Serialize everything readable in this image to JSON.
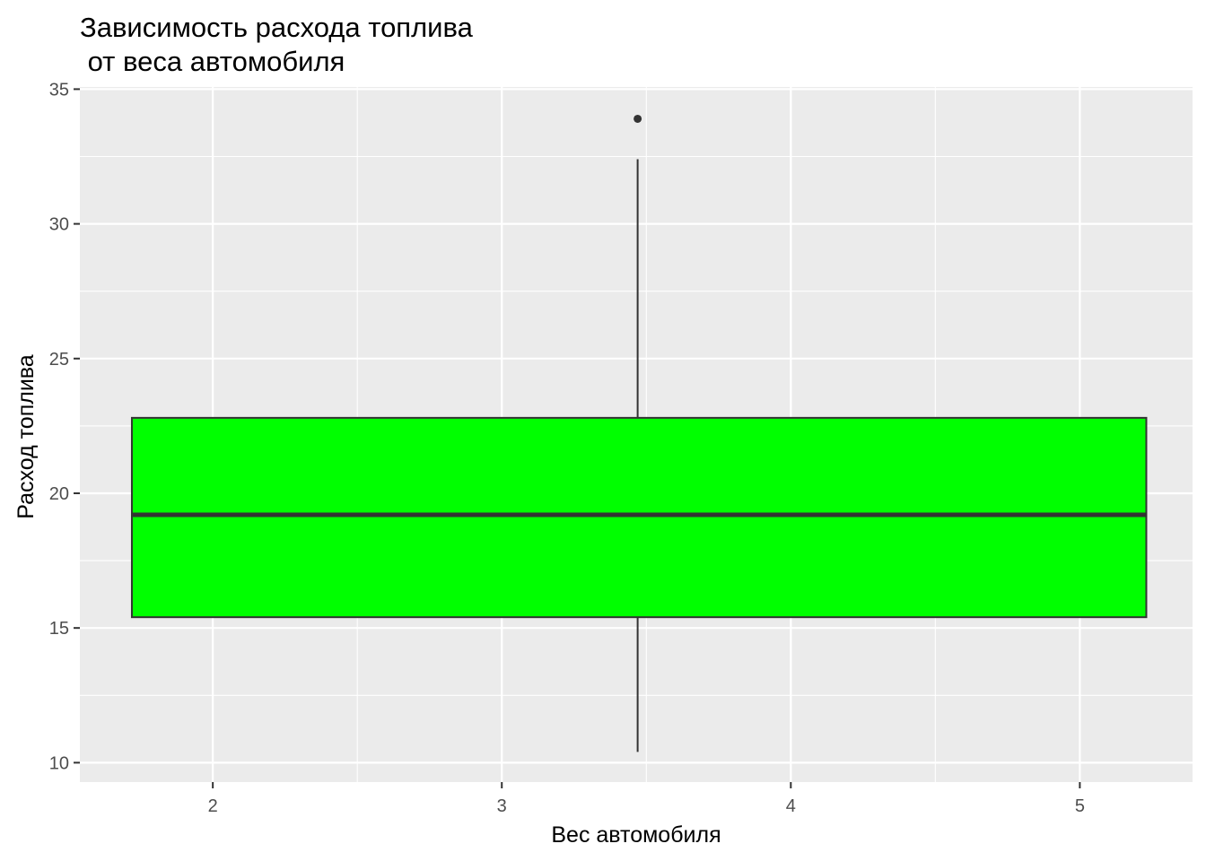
{
  "chart_data": {
    "type": "boxplot",
    "title_lines": [
      "Зависимость расхода топлива",
      " от веса автомобиля"
    ],
    "xlabel": "Вес автомобиля",
    "ylabel": "Расход топлива",
    "xlim": [
      1.54,
      5.39
    ],
    "ylim": [
      9.28,
      35.08
    ],
    "x_ticks": [
      2,
      3,
      4,
      5
    ],
    "y_ticks": [
      10,
      15,
      20,
      25,
      30,
      35
    ],
    "grid": true,
    "legend": "none",
    "box": {
      "x_min": 1.72,
      "x_max": 5.23,
      "whisker_x": 3.47,
      "q1": 15.4,
      "median": 19.2,
      "q3": 22.8,
      "whisker_low": 10.4,
      "whisker_high": 32.4,
      "outliers": [
        33.9
      ]
    },
    "colors": {
      "panel": "#ebebeb",
      "grid": "#ffffff",
      "box_fill": "#00ff00",
      "box_line": "#333333"
    }
  }
}
